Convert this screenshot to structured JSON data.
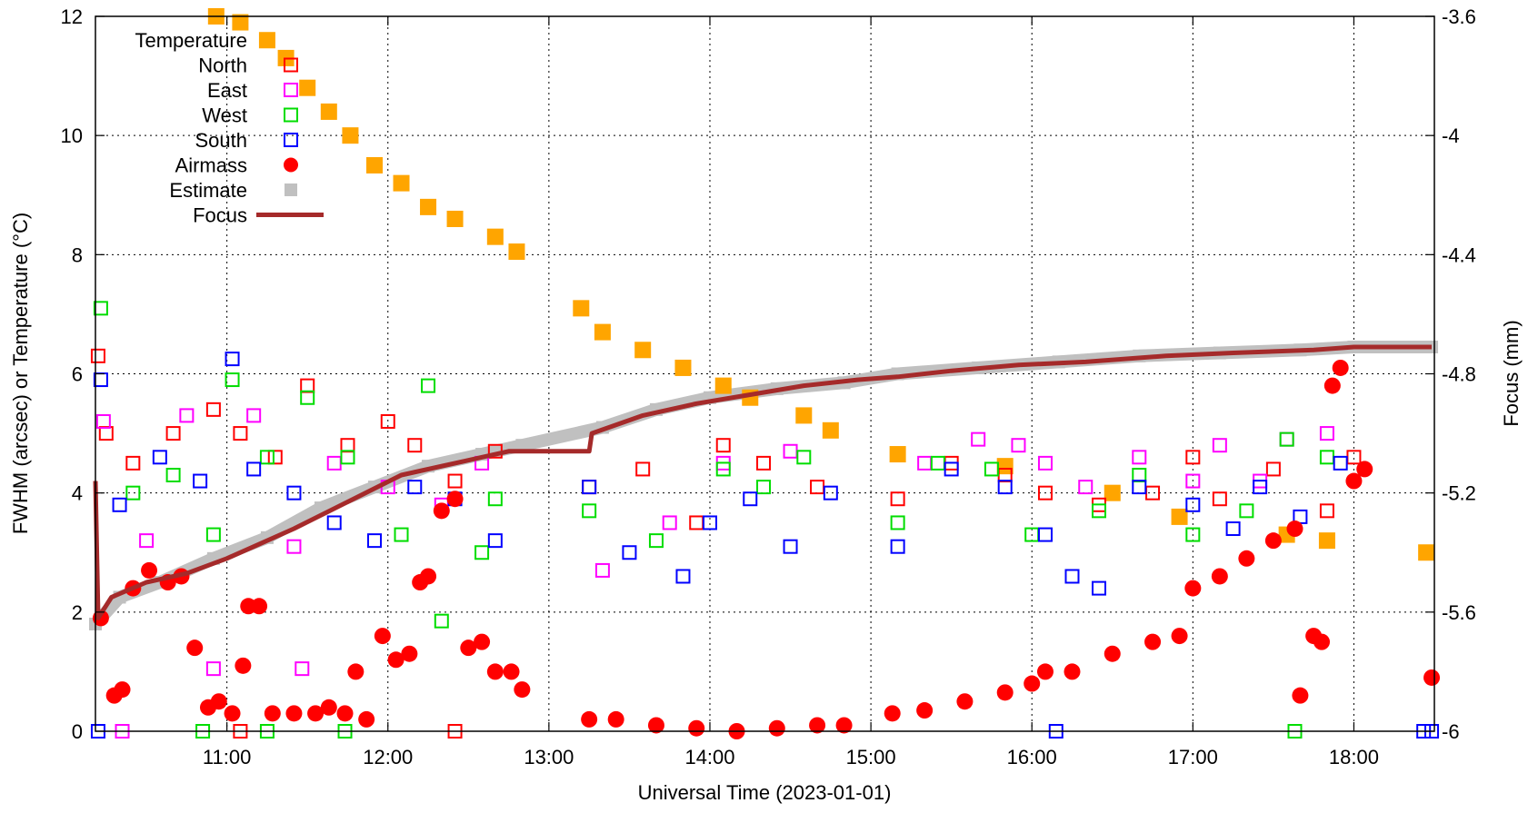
{
  "chart_data": {
    "type": "scatter",
    "xlabel": "Universal Time (2023-01-01)",
    "ylabel": "FWHM (arcsec) or Temperature (°C)",
    "y2label": "Focus (mm)",
    "xlim": [
      "10:11",
      "18:30"
    ],
    "ylim": [
      0,
      12
    ],
    "y2lim": [
      -6,
      -3.6
    ],
    "grid": true,
    "legend_position": "top-left",
    "xticks": [
      "11:00",
      "12:00",
      "13:00",
      "14:00",
      "15:00",
      "16:00",
      "17:00",
      "18:00"
    ],
    "yticks": [
      "0",
      "2",
      "4",
      "6",
      "8",
      "10",
      "12"
    ],
    "y2ticks": [
      "-6",
      "-5.6",
      "-5.2",
      "-4.8",
      "-4.4",
      "-4",
      "-3.6"
    ],
    "colors": {
      "temperature": "#ffa500",
      "north": "#ff0000",
      "east": "#ff00ff",
      "west": "#00dd00",
      "south": "#0000ff",
      "airmass": "#ff0000",
      "estimate": "#c0c0c0",
      "focus": "#a52a2a"
    },
    "series": [
      {
        "name": "Temperature",
        "axis": "left",
        "marker": "filled-square",
        "points": [
          [
            "10:56",
            12.0
          ],
          [
            "11:05",
            11.9
          ],
          [
            "11:15",
            11.6
          ],
          [
            "11:22",
            11.3
          ],
          [
            "11:30",
            10.8
          ],
          [
            "11:38",
            10.4
          ],
          [
            "11:46",
            10.0
          ],
          [
            "11:55",
            9.5
          ],
          [
            "12:05",
            9.2
          ],
          [
            "12:15",
            8.8
          ],
          [
            "12:25",
            8.6
          ],
          [
            "12:40",
            8.3
          ],
          [
            "12:48",
            8.05
          ],
          [
            "13:12",
            7.1
          ],
          [
            "13:20",
            6.7
          ],
          [
            "13:35",
            6.4
          ],
          [
            "13:50",
            6.1
          ],
          [
            "14:05",
            5.8
          ],
          [
            "14:15",
            5.6
          ],
          [
            "14:35",
            5.3
          ],
          [
            "14:45",
            5.05
          ],
          [
            "15:10",
            4.65
          ],
          [
            "15:50",
            4.45
          ],
          [
            "16:30",
            4.0
          ],
          [
            "16:55",
            3.6
          ],
          [
            "17:35",
            3.3
          ],
          [
            "17:50",
            3.2
          ],
          [
            "18:27",
            3.0
          ]
        ]
      },
      {
        "name": "North",
        "axis": "left",
        "marker": "open-square",
        "points": [
          [
            "10:12",
            6.3
          ],
          [
            "10:15",
            5.0
          ],
          [
            "10:25",
            4.5
          ],
          [
            "10:40",
            5.0
          ],
          [
            "10:55",
            5.4
          ],
          [
            "11:05",
            5.0
          ],
          [
            "11:18",
            4.6
          ],
          [
            "11:30",
            5.8
          ],
          [
            "11:45",
            4.8
          ],
          [
            "12:00",
            5.2
          ],
          [
            "12:10",
            4.8
          ],
          [
            "12:25",
            4.2
          ],
          [
            "12:40",
            4.7
          ],
          [
            "13:15",
            4.1
          ],
          [
            "13:35",
            4.4
          ],
          [
            "13:55",
            3.5
          ],
          [
            "14:05",
            4.8
          ],
          [
            "14:20",
            4.5
          ],
          [
            "14:40",
            4.1
          ],
          [
            "15:10",
            3.9
          ],
          [
            "15:30",
            4.5
          ],
          [
            "15:50",
            4.3
          ],
          [
            "16:05",
            4.0
          ],
          [
            "16:25",
            3.8
          ],
          [
            "16:45",
            4.0
          ],
          [
            "17:00",
            4.6
          ],
          [
            "17:10",
            3.9
          ],
          [
            "17:30",
            4.4
          ],
          [
            "17:50",
            3.7
          ],
          [
            "18:00",
            4.6
          ],
          [
            "11:05",
            0.0
          ],
          [
            "12:25",
            0.0
          ]
        ]
      },
      {
        "name": "East",
        "axis": "left",
        "marker": "open-square",
        "points": [
          [
            "10:14",
            5.2
          ],
          [
            "10:30",
            3.2
          ],
          [
            "10:45",
            5.3
          ],
          [
            "10:55",
            1.05
          ],
          [
            "11:10",
            5.3
          ],
          [
            "11:25",
            3.1
          ],
          [
            "11:28",
            1.05
          ],
          [
            "11:40",
            4.5
          ],
          [
            "12:00",
            4.1
          ],
          [
            "12:20",
            3.8
          ],
          [
            "12:35",
            4.5
          ],
          [
            "13:20",
            2.7
          ],
          [
            "13:45",
            3.5
          ],
          [
            "14:05",
            4.5
          ],
          [
            "14:30",
            4.7
          ],
          [
            "15:20",
            4.5
          ],
          [
            "15:40",
            4.9
          ],
          [
            "15:55",
            4.8
          ],
          [
            "16:05",
            4.5
          ],
          [
            "16:20",
            4.1
          ],
          [
            "16:40",
            4.6
          ],
          [
            "17:00",
            4.2
          ],
          [
            "17:10",
            4.8
          ],
          [
            "17:25",
            4.2
          ],
          [
            "17:35",
            4.9
          ],
          [
            "17:50",
            5.0
          ],
          [
            "10:21",
            0.0
          ]
        ]
      },
      {
        "name": "West",
        "axis": "left",
        "marker": "open-square",
        "points": [
          [
            "10:13",
            7.1
          ],
          [
            "10:25",
            4.0
          ],
          [
            "10:40",
            4.3
          ],
          [
            "10:55",
            3.3
          ],
          [
            "11:02",
            5.9
          ],
          [
            "11:15",
            4.6
          ],
          [
            "11:30",
            5.6
          ],
          [
            "11:45",
            4.6
          ],
          [
            "12:05",
            3.3
          ],
          [
            "12:15",
            5.8
          ],
          [
            "12:20",
            1.85
          ],
          [
            "12:35",
            3.0
          ],
          [
            "12:40",
            3.9
          ],
          [
            "13:15",
            3.7
          ],
          [
            "13:40",
            3.2
          ],
          [
            "14:05",
            4.4
          ],
          [
            "14:20",
            4.1
          ],
          [
            "14:35",
            4.6
          ],
          [
            "15:10",
            3.5
          ],
          [
            "15:25",
            4.5
          ],
          [
            "15:45",
            4.4
          ],
          [
            "16:00",
            3.3
          ],
          [
            "16:25",
            3.7
          ],
          [
            "16:40",
            4.3
          ],
          [
            "17:00",
            3.3
          ],
          [
            "17:20",
            3.7
          ],
          [
            "17:35",
            4.9
          ],
          [
            "17:50",
            4.6
          ],
          [
            "10:51",
            0.0
          ],
          [
            "11:15",
            0.0
          ],
          [
            "11:44",
            0.0
          ],
          [
            "17:38",
            0.0
          ]
        ]
      },
      {
        "name": "South",
        "axis": "left",
        "marker": "open-square",
        "points": [
          [
            "10:13",
            5.9
          ],
          [
            "10:20",
            3.8
          ],
          [
            "10:35",
            4.6
          ],
          [
            "10:50",
            4.2
          ],
          [
            "11:02",
            6.25
          ],
          [
            "11:10",
            4.4
          ],
          [
            "11:25",
            4.0
          ],
          [
            "11:40",
            3.5
          ],
          [
            "11:55",
            3.2
          ],
          [
            "12:10",
            4.1
          ],
          [
            "12:25",
            3.9
          ],
          [
            "12:40",
            3.2
          ],
          [
            "13:15",
            4.1
          ],
          [
            "13:30",
            3.0
          ],
          [
            "13:50",
            2.6
          ],
          [
            "14:00",
            3.5
          ],
          [
            "14:15",
            3.9
          ],
          [
            "14:30",
            3.1
          ],
          [
            "14:45",
            4.0
          ],
          [
            "15:10",
            3.1
          ],
          [
            "15:30",
            4.4
          ],
          [
            "15:50",
            4.1
          ],
          [
            "16:05",
            3.3
          ],
          [
            "16:15",
            2.6
          ],
          [
            "16:25",
            2.4
          ],
          [
            "16:40",
            4.1
          ],
          [
            "17:00",
            3.8
          ],
          [
            "17:15",
            3.4
          ],
          [
            "17:25",
            4.1
          ],
          [
            "17:40",
            3.6
          ],
          [
            "17:55",
            4.5
          ],
          [
            "10:12",
            0.0
          ],
          [
            "16:09",
            0.0
          ],
          [
            "18:26",
            0.0
          ],
          [
            "18:29",
            0.0
          ]
        ]
      },
      {
        "name": "Airmass",
        "axis": "left",
        "marker": "filled-circle",
        "points": [
          [
            "10:13",
            1.9
          ],
          [
            "10:18",
            0.6
          ],
          [
            "10:21",
            0.7
          ],
          [
            "10:25",
            2.4
          ],
          [
            "10:31",
            2.7
          ],
          [
            "10:38",
            2.5
          ],
          [
            "10:43",
            2.6
          ],
          [
            "10:48",
            1.4
          ],
          [
            "10:53",
            0.4
          ],
          [
            "10:57",
            0.5
          ],
          [
            "11:02",
            0.3
          ],
          [
            "11:06",
            1.1
          ],
          [
            "11:08",
            2.1
          ],
          [
            "11:12",
            2.1
          ],
          [
            "11:17",
            0.3
          ],
          [
            "11:25",
            0.3
          ],
          [
            "11:33",
            0.3
          ],
          [
            "11:38",
            0.4
          ],
          [
            "11:44",
            0.3
          ],
          [
            "11:48",
            1.0
          ],
          [
            "11:52",
            0.2
          ],
          [
            "11:58",
            1.6
          ],
          [
            "12:03",
            1.2
          ],
          [
            "12:08",
            1.3
          ],
          [
            "12:12",
            2.5
          ],
          [
            "12:15",
            2.6
          ],
          [
            "12:20",
            3.7
          ],
          [
            "12:25",
            3.9
          ],
          [
            "12:30",
            1.4
          ],
          [
            "12:35",
            1.5
          ],
          [
            "12:40",
            1.0
          ],
          [
            "12:46",
            1.0
          ],
          [
            "12:50",
            0.7
          ],
          [
            "13:15",
            0.2
          ],
          [
            "13:25",
            0.2
          ],
          [
            "13:40",
            0.1
          ],
          [
            "13:55",
            0.05
          ],
          [
            "14:10",
            0.0
          ],
          [
            "14:25",
            0.05
          ],
          [
            "14:40",
            0.1
          ],
          [
            "14:50",
            0.1
          ],
          [
            "15:08",
            0.3
          ],
          [
            "15:20",
            0.35
          ],
          [
            "15:35",
            0.5
          ],
          [
            "15:50",
            0.65
          ],
          [
            "16:00",
            0.8
          ],
          [
            "16:05",
            1.0
          ],
          [
            "16:15",
            1.0
          ],
          [
            "16:30",
            1.3
          ],
          [
            "16:45",
            1.5
          ],
          [
            "16:55",
            1.6
          ],
          [
            "17:00",
            2.4
          ],
          [
            "17:10",
            2.6
          ],
          [
            "17:20",
            2.9
          ],
          [
            "17:30",
            3.2
          ],
          [
            "17:38",
            3.4
          ],
          [
            "17:40",
            0.6
          ],
          [
            "17:45",
            1.6
          ],
          [
            "17:48",
            1.5
          ],
          [
            "17:52",
            5.8
          ],
          [
            "17:55",
            6.1
          ],
          [
            "18:00",
            4.2
          ],
          [
            "18:04",
            4.4
          ],
          [
            "18:29",
            0.9
          ]
        ]
      },
      {
        "name": "Estimate",
        "axis": "right",
        "marker": "filled-square",
        "points": [
          [
            "10:11",
            -5.64
          ],
          [
            "10:20",
            -5.55
          ],
          [
            "10:35",
            -5.5
          ],
          [
            "10:55",
            -5.42
          ],
          [
            "11:15",
            -5.35
          ],
          [
            "11:35",
            -5.25
          ],
          [
            "11:55",
            -5.18
          ],
          [
            "12:15",
            -5.11
          ],
          [
            "12:35",
            -5.07
          ],
          [
            "12:50",
            -5.04
          ],
          [
            "13:20",
            -4.98
          ],
          [
            "13:40",
            -4.92
          ],
          [
            "14:00",
            -4.88
          ],
          [
            "14:25",
            -4.85
          ],
          [
            "14:50",
            -4.83
          ],
          [
            "15:10",
            -4.8
          ],
          [
            "15:40",
            -4.78
          ],
          [
            "16:10",
            -4.76
          ],
          [
            "16:40",
            -4.74
          ],
          [
            "17:10",
            -4.73
          ],
          [
            "17:40",
            -4.72
          ],
          [
            "18:00",
            -4.71
          ],
          [
            "18:29",
            -4.71
          ]
        ]
      },
      {
        "name": "Focus",
        "axis": "right",
        "marker": "line",
        "points": [
          [
            "10:11",
            -5.16
          ],
          [
            "10:12",
            -5.62
          ],
          [
            "10:17",
            -5.55
          ],
          [
            "10:30",
            -5.5
          ],
          [
            "10:45",
            -5.47
          ],
          [
            "11:00",
            -5.42
          ],
          [
            "11:10",
            -5.38
          ],
          [
            "11:25",
            -5.32
          ],
          [
            "11:45",
            -5.23
          ],
          [
            "12:05",
            -5.14
          ],
          [
            "12:25",
            -5.1
          ],
          [
            "12:45",
            -5.06
          ],
          [
            "13:00",
            -5.06
          ],
          [
            "13:15",
            -5.06
          ],
          [
            "13:16",
            -5.0
          ],
          [
            "13:35",
            -4.94
          ],
          [
            "13:55",
            -4.9
          ],
          [
            "14:15",
            -4.87
          ],
          [
            "14:35",
            -4.84
          ],
          [
            "14:55",
            -4.82
          ],
          [
            "15:10",
            -4.81
          ],
          [
            "15:30",
            -4.79
          ],
          [
            "15:55",
            -4.77
          ],
          [
            "16:20",
            -4.76
          ],
          [
            "16:50",
            -4.74
          ],
          [
            "17:15",
            -4.73
          ],
          [
            "17:45",
            -4.72
          ],
          [
            "18:00",
            -4.71
          ],
          [
            "18:29",
            -4.71
          ]
        ]
      }
    ]
  }
}
